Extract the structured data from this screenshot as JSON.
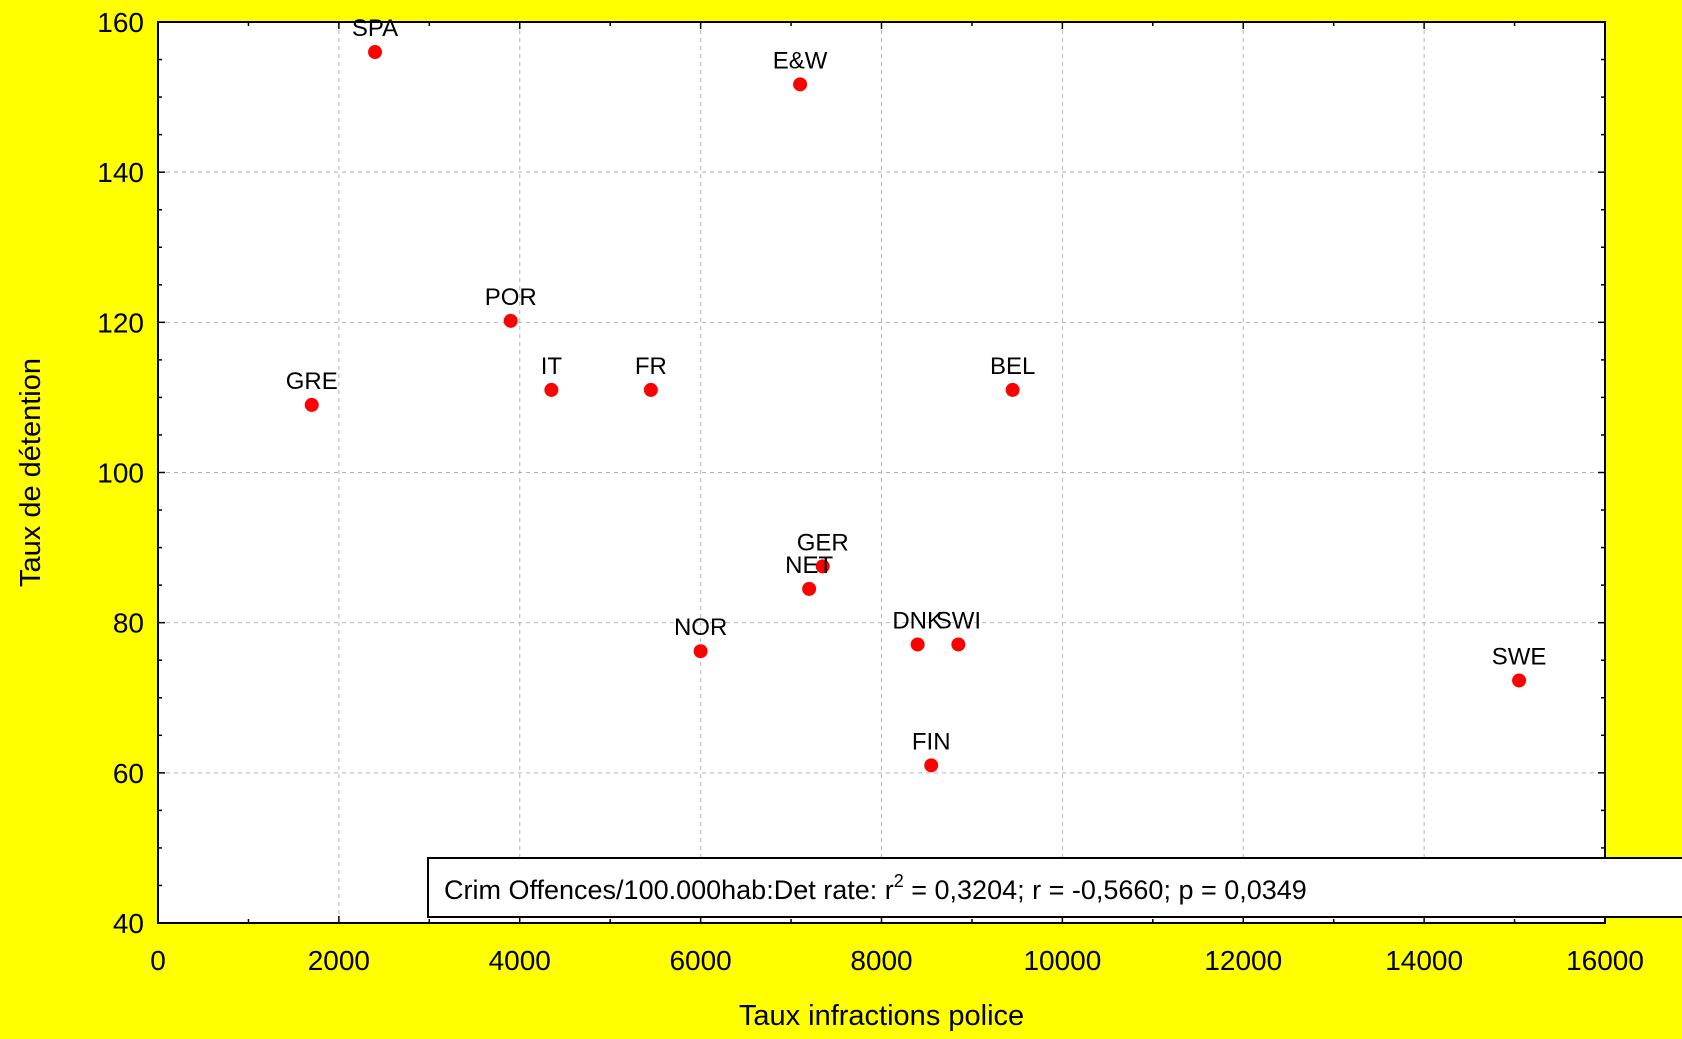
{
  "background_color": "#ffff00",
  "plot_background_color": "#ffffff",
  "marker_color": "#ff0000",
  "chart_data": {
    "type": "scatter",
    "xlabel": "Taux infractions police",
    "ylabel": "Taux de détention",
    "xlim": [
      0,
      16000
    ],
    "ylim": [
      40,
      160
    ],
    "xticks": [
      0,
      2000,
      4000,
      6000,
      8000,
      10000,
      12000,
      14000,
      16000
    ],
    "yticks": [
      40,
      60,
      80,
      100,
      120,
      140,
      160
    ],
    "grid": true,
    "points": [
      {
        "label": "SPA",
        "x": 2400,
        "y": 156
      },
      {
        "label": "E&W",
        "x": 7100,
        "y": 151.7
      },
      {
        "label": "POR",
        "x": 3900,
        "y": 120.2
      },
      {
        "label": "GRE",
        "x": 1700,
        "y": 109
      },
      {
        "label": "IT",
        "x": 4350,
        "y": 111
      },
      {
        "label": "FR",
        "x": 5450,
        "y": 111
      },
      {
        "label": "BEL",
        "x": 9450,
        "y": 111
      },
      {
        "label": "GER",
        "x": 7350,
        "y": 87.5
      },
      {
        "label": "NET",
        "x": 7200,
        "y": 84.5
      },
      {
        "label": "NOR",
        "x": 6000,
        "y": 76.2
      },
      {
        "label": "DNK",
        "x": 8400,
        "y": 77.1
      },
      {
        "label": "SWI",
        "x": 8850,
        "y": 77.1
      },
      {
        "label": "SWE",
        "x": 15050,
        "y": 72.3
      },
      {
        "label": "FIN",
        "x": 8550,
        "y": 61
      }
    ],
    "annotation": {
      "prefix": "Crim Offences/100.000hab:Det rate:  r",
      "superscript": "2",
      "suffix": " = 0,3204;  r = -0,5660; p = 0,0349"
    }
  }
}
